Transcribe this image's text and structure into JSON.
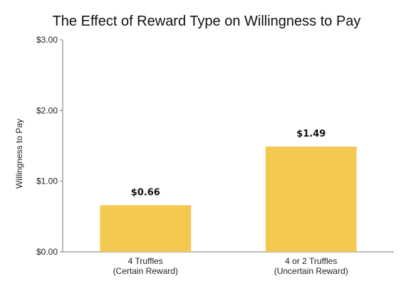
{
  "chart_data": {
    "type": "bar",
    "title": "The Effect of Reward Type on Willingness to Pay",
    "ylabel": "Willingness to Pay",
    "xlabel": "",
    "categories": [
      [
        "4 Truffles",
        "(Certain Reward)"
      ],
      [
        "4 or 2 Truffles",
        "(Uncertain Reward)"
      ]
    ],
    "values": [
      0.66,
      1.49
    ],
    "data_labels": [
      "$0.66",
      "$1.49"
    ],
    "ylim": [
      0,
      3
    ],
    "yticks": [
      0,
      1,
      2,
      3
    ],
    "ytick_labels": [
      "$0.00",
      "$1.00",
      "$2.00",
      "$3.00"
    ],
    "grid": false,
    "colors": {
      "bar": "#F5C852",
      "axis": "#777777"
    }
  }
}
